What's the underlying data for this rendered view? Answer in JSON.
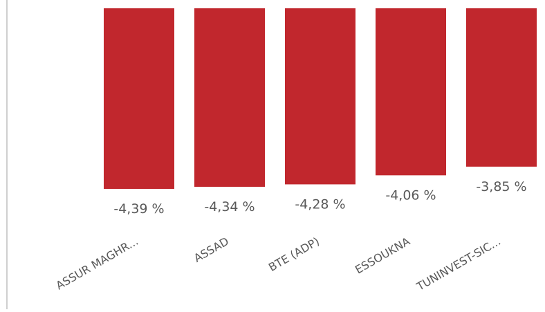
{
  "chart_data": {
    "type": "bar",
    "categories": [
      "ASSUR MAGHR...",
      "ASSAD",
      "BTE (ADP)",
      "ESSOUKNA",
      "TUNINVEST-SIC..."
    ],
    "values": [
      -4.39,
      -4.34,
      -4.28,
      -4.06,
      -3.85
    ],
    "data_labels": [
      "-4,39 %",
      "-4,34 %",
      "-4,28 %",
      "-4,06 %",
      "-3,85 %"
    ],
    "ylim": [
      -4.39,
      0
    ],
    "grid": false,
    "legend": "none",
    "colors": {
      "bar": "#C1272D",
      "axis": "#BFBFBF",
      "text": "#595959"
    }
  }
}
